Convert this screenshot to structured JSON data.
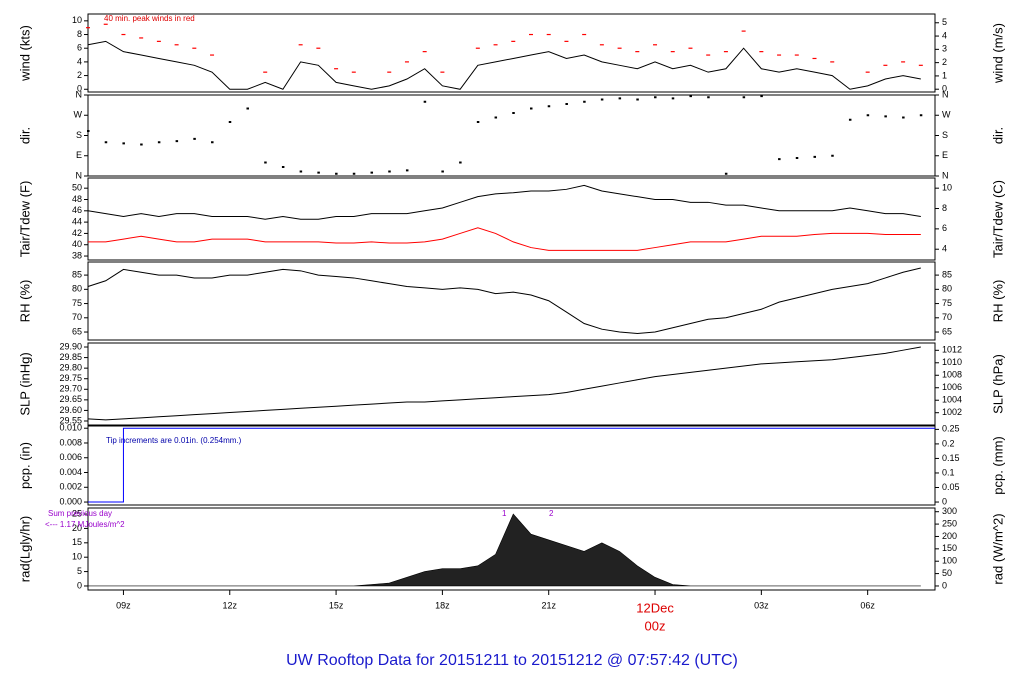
{
  "chart_data": {
    "type": "multi-panel",
    "title": "UW Rooftop Data for 20151211  to  20151212 @ 07:57:42  (UTC)",
    "date_label": "12Dec",
    "x": [
      8,
      8.5,
      9,
      9.5,
      10,
      10.5,
      11,
      11.5,
      12,
      12.5,
      13,
      13.5,
      14,
      14.5,
      15,
      15.5,
      16,
      16.5,
      17,
      17.5,
      18,
      18.5,
      19,
      19.5,
      20,
      20.5,
      21,
      21.5,
      22,
      22.5,
      23,
      23.5,
      24,
      24.5,
      25,
      25.5,
      26,
      26.5,
      27,
      27.5,
      28,
      28.5,
      29,
      29.5,
      30,
      30.5,
      31,
      31.5
    ],
    "xlim": [
      8,
      31.9
    ],
    "xticks": [
      {
        "value": 9,
        "label": "09z"
      },
      {
        "value": 12,
        "label": "12z"
      },
      {
        "value": 15,
        "label": "15z"
      },
      {
        "value": 18,
        "label": "18z"
      },
      {
        "value": 21,
        "label": "21z"
      },
      {
        "value": 24,
        "label": "00z"
      },
      {
        "value": 27,
        "label": "03z"
      },
      {
        "value": 30,
        "label": "06z"
      }
    ],
    "panels": [
      {
        "type": "line",
        "ylabel": "wind (kts)",
        "y2label": "wind (m/s)",
        "ylim": [
          -0.4,
          11
        ],
        "yticks": [
          0,
          2,
          4,
          6,
          8,
          10
        ],
        "y2lim": [
          -0.21,
          5.66
        ],
        "y2ticks": [
          0,
          1,
          2,
          3,
          4,
          5
        ],
        "notes": [
          "40 min. peak winds in red"
        ],
        "series": [
          {
            "color": "#000000",
            "values": [
              6.5,
              7,
              5.5,
              5,
              4.5,
              4,
              3.5,
              2.5,
              0,
              0,
              1,
              0,
              4,
              3.5,
              1,
              0.5,
              0,
              0.5,
              1.5,
              3,
              0.5,
              0,
              3.5,
              4,
              4.5,
              5,
              5.5,
              4.5,
              5,
              4,
              3.5,
              3,
              4,
              3,
              3.5,
              2.5,
              3,
              6,
              3,
              2.5,
              3,
              2.5,
              2,
              0,
              0.5,
              1.5,
              2,
              1.5
            ]
          },
          {
            "color": "#ff0000",
            "marker": "dash",
            "values": [
              9,
              9.5,
              8,
              7.5,
              7,
              6.5,
              6,
              5,
              null,
              null,
              2.5,
              null,
              6.5,
              6,
              3,
              2.5,
              null,
              2.5,
              4,
              5.5,
              2.5,
              null,
              6,
              6.5,
              7,
              8,
              8,
              7,
              8,
              6.5,
              6,
              5.5,
              6.5,
              5.5,
              6,
              5,
              5.5,
              8.5,
              5.5,
              5,
              5,
              4.5,
              4,
              null,
              2.5,
              3.5,
              4,
              3.5
            ]
          }
        ]
      },
      {
        "type": "scatter",
        "ylabel": "dir.",
        "y2label": "dir.",
        "ylim": [
          0,
          360
        ],
        "yticks": [
          {
            "value": 0,
            "label": "N"
          },
          {
            "value": 90,
            "label": "E"
          },
          {
            "value": 180,
            "label": "S"
          },
          {
            "value": 270,
            "label": "W"
          },
          {
            "value": 360,
            "label": "N"
          }
        ],
        "y2lim": [
          0,
          360
        ],
        "y2ticks": [
          {
            "value": 0,
            "label": "N"
          },
          {
            "value": 90,
            "label": "E"
          },
          {
            "value": 180,
            "label": "S"
          },
          {
            "value": 270,
            "label": "W"
          },
          {
            "value": 360,
            "label": "N"
          }
        ],
        "series": [
          {
            "color": "#000000",
            "values": [
              200,
              150,
              145,
              140,
              150,
              155,
              165,
              150,
              240,
              300,
              60,
              40,
              20,
              15,
              10,
              10,
              15,
              20,
              25,
              330,
              20,
              60,
              240,
              260,
              280,
              300,
              310,
              320,
              330,
              340,
              345,
              340,
              350,
              345,
              355,
              350,
              10,
              350,
              355,
              75,
              80,
              85,
              90,
              250,
              270,
              265,
              260,
              270
            ]
          }
        ]
      },
      {
        "type": "line",
        "ylabel": "Tair/Tdew (F)",
        "y2label": "Tair/Tdew (C)",
        "ylim": [
          37.3,
          51.8
        ],
        "yticks": [
          38,
          40,
          42,
          44,
          46,
          48,
          50
        ],
        "y2lim": [
          2.94,
          11
        ],
        "y2ticks": [
          4,
          6,
          8,
          10
        ],
        "series": [
          {
            "color": "#000000",
            "values": [
              46,
              45.5,
              45,
              45.5,
              45,
              45.5,
              45.5,
              45,
              45,
              45,
              44.5,
              45,
              44.5,
              44.5,
              45,
              45,
              45.5,
              45.5,
              45.5,
              46,
              46.5,
              47.5,
              48.5,
              49,
              49.2,
              49.5,
              49.5,
              49.8,
              50.5,
              49.5,
              49,
              48.5,
              48,
              48,
              47.5,
              47.5,
              47,
              47,
              46.5,
              46,
              46,
              46,
              46,
              46.5,
              46,
              45.5,
              45.5,
              45
            ]
          },
          {
            "color": "#ff0000",
            "values": [
              40.5,
              40.5,
              41,
              41.5,
              41,
              40.5,
              40.5,
              41,
              41,
              41,
              40.5,
              40.5,
              40.5,
              40.5,
              40.3,
              40.3,
              40.5,
              40.3,
              40.3,
              40.5,
              41,
              42,
              43,
              42,
              40.5,
              39.5,
              39,
              39,
              39,
              39,
              39,
              39,
              39.5,
              40,
              40.5,
              40.5,
              40.5,
              41,
              41.5,
              41.5,
              41.5,
              41.8,
              42,
              42,
              42,
              41.8,
              41.8,
              41.8
            ]
          }
        ]
      },
      {
        "type": "line",
        "ylabel": "RH (%)",
        "y2label": "RH (%)",
        "ylim": [
          62.2,
          89.6
        ],
        "yticks": [
          65,
          70,
          75,
          80,
          85
        ],
        "y2lim": [
          62.2,
          89.6
        ],
        "y2ticks": [
          65,
          70,
          75,
          80,
          85
        ],
        "series": [
          {
            "color": "#000000",
            "values": [
              81,
              83,
              87,
              86,
              85,
              85,
              84,
              84,
              85,
              85,
              86,
              87,
              86.5,
              85,
              84.5,
              84,
              83,
              82,
              81,
              80.5,
              80,
              80.5,
              80,
              78.5,
              79,
              78,
              76,
              72,
              68,
              66,
              65,
              64.5,
              65,
              66.5,
              68,
              69.5,
              70,
              71.5,
              73,
              75.5,
              77,
              78.5,
              80,
              81,
              82,
              84,
              86,
              87.5
            ]
          }
        ]
      },
      {
        "type": "line",
        "ylabel": "SLP (inHg)",
        "y2label": "SLP (hPa)",
        "ylim": [
          29.531,
          29.919
        ],
        "yticks": [
          29.55,
          {
            "value": 29.6,
            "label": "29.60"
          },
          29.65,
          {
            "value": 29.7,
            "label": "29.70"
          },
          29.75,
          {
            "value": 29.8,
            "label": "29.80"
          },
          29.85,
          {
            "value": 29.9,
            "label": "29.90"
          }
        ],
        "y2lim": [
          1000.03,
          1013.17
        ],
        "y2ticks": [
          1002,
          1004,
          1006,
          1008,
          1010,
          1012
        ],
        "series": [
          {
            "color": "#000000",
            "values": [
              29.56,
              29.555,
              29.56,
              29.565,
              29.57,
              29.575,
              29.58,
              29.585,
              29.59,
              29.595,
              29.6,
              29.605,
              29.61,
              29.615,
              29.62,
              29.625,
              29.63,
              29.635,
              29.64,
              29.64,
              29.645,
              29.65,
              29.655,
              29.66,
              29.665,
              29.67,
              29.675,
              29.685,
              29.7,
              29.715,
              29.73,
              29.745,
              29.76,
              29.77,
              29.78,
              29.79,
              29.8,
              29.81,
              29.82,
              29.825,
              29.83,
              29.835,
              29.84,
              29.85,
              29.86,
              29.87,
              29.885,
              29.9
            ]
          }
        ]
      },
      {
        "type": "step",
        "ylabel": "pcp. (in)",
        "y2label": "pcp. (mm)",
        "ylim": [
          -0.0004,
          0.0103
        ],
        "yticks": [
          {
            "value": 0,
            "label": "0.000"
          },
          {
            "value": 0.002,
            "label": "0.002"
          },
          {
            "value": 0.004,
            "label": "0.004"
          },
          {
            "value": 0.006,
            "label": "0.006"
          },
          {
            "value": 0.008,
            "label": "0.008"
          },
          {
            "value": 0.01,
            "label": "0.010"
          }
        ],
        "y2lim": [
          -0.0102,
          0.2616
        ],
        "y2ticks": [
          0,
          0.05,
          0.1,
          0.15,
          0.2,
          0.25
        ],
        "notes": [
          "Tip increments are 0.01in. (0.254mm.)"
        ],
        "series": [
          {
            "color": "#0000ff",
            "values": [
              0,
              0,
              0.01,
              0.01,
              0.01,
              0.01,
              0.01,
              0.01,
              0.01,
              0.01,
              0.01,
              0.01,
              0.01,
              0.01,
              0.01,
              0.01,
              0.01,
              0.01,
              0.01,
              0.01,
              0.01,
              0.01,
              0.01,
              0.01,
              0.01,
              0.01,
              0.01,
              0.01,
              0.01,
              0.01,
              0.01,
              0.01,
              0.01,
              0.01,
              0.01,
              0.01,
              0.01,
              0.01,
              0.01,
              0.01,
              0.01,
              0.01,
              0.01,
              0.01,
              0.01,
              0.01,
              0.01,
              0.01
            ]
          }
        ]
      },
      {
        "type": "area",
        "ylabel": "rad(Lgly/hr)",
        "y2label": "rad (W/m^2)",
        "ylim": [
          -1.4,
          27.1
        ],
        "yticks": [
          0,
          5,
          10,
          15,
          20,
          25
        ],
        "y2lim": [
          -16.3,
          315
        ],
        "y2ticks": [
          0,
          50,
          100,
          150,
          200,
          250,
          300
        ],
        "notes": [
          "Sum previous day",
          "<--- 1.17 MJoules/m^2",
          "1",
          "2"
        ],
        "series": [
          {
            "color": "#222222",
            "values": [
              0,
              0,
              0,
              0,
              0,
              0,
              0,
              0,
              0,
              0,
              0,
              0,
              0,
              0,
              0,
              0,
              0.5,
              1,
              3,
              5,
              6,
              6,
              7,
              11,
              25,
              18,
              16,
              14,
              12,
              15,
              12,
              7,
              3,
              0.5,
              0,
              0,
              0,
              0,
              0,
              0,
              0,
              0,
              0,
              0,
              0,
              0,
              0,
              0
            ]
          }
        ]
      }
    ]
  }
}
